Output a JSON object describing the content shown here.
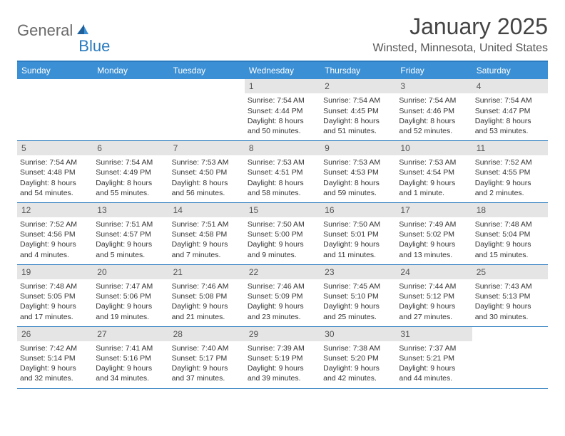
{
  "logo": {
    "text1": "General",
    "text2": "Blue"
  },
  "title": "January 2025",
  "location": "Winsted, Minnesota, United States",
  "colors": {
    "header_bg": "#3b8fd4",
    "header_text": "#ffffff",
    "border": "#2a7bbf",
    "daynum_bg": "#e5e5e5",
    "body_text": "#333333",
    "page_bg": "#ffffff",
    "logo_gray": "#6a6a6a",
    "logo_blue": "#2a7bbf"
  },
  "typography": {
    "title_fontsize": 32,
    "location_fontsize": 16,
    "weekday_fontsize": 12,
    "daynum_fontsize": 12,
    "body_fontsize": 10.5,
    "logo_fontsize": 22
  },
  "layout": {
    "columns": 7,
    "rows": 5,
    "cell_min_height": 82
  },
  "weekdays": [
    "Sunday",
    "Monday",
    "Tuesday",
    "Wednesday",
    "Thursday",
    "Friday",
    "Saturday"
  ],
  "weeks": [
    [
      {
        "day": "",
        "sunrise": "",
        "sunset": "",
        "daylight1": "",
        "daylight2": ""
      },
      {
        "day": "",
        "sunrise": "",
        "sunset": "",
        "daylight1": "",
        "daylight2": ""
      },
      {
        "day": "",
        "sunrise": "",
        "sunset": "",
        "daylight1": "",
        "daylight2": ""
      },
      {
        "day": "1",
        "sunrise": "Sunrise: 7:54 AM",
        "sunset": "Sunset: 4:44 PM",
        "daylight1": "Daylight: 8 hours",
        "daylight2": "and 50 minutes."
      },
      {
        "day": "2",
        "sunrise": "Sunrise: 7:54 AM",
        "sunset": "Sunset: 4:45 PM",
        "daylight1": "Daylight: 8 hours",
        "daylight2": "and 51 minutes."
      },
      {
        "day": "3",
        "sunrise": "Sunrise: 7:54 AM",
        "sunset": "Sunset: 4:46 PM",
        "daylight1": "Daylight: 8 hours",
        "daylight2": "and 52 minutes."
      },
      {
        "day": "4",
        "sunrise": "Sunrise: 7:54 AM",
        "sunset": "Sunset: 4:47 PM",
        "daylight1": "Daylight: 8 hours",
        "daylight2": "and 53 minutes."
      }
    ],
    [
      {
        "day": "5",
        "sunrise": "Sunrise: 7:54 AM",
        "sunset": "Sunset: 4:48 PM",
        "daylight1": "Daylight: 8 hours",
        "daylight2": "and 54 minutes."
      },
      {
        "day": "6",
        "sunrise": "Sunrise: 7:54 AM",
        "sunset": "Sunset: 4:49 PM",
        "daylight1": "Daylight: 8 hours",
        "daylight2": "and 55 minutes."
      },
      {
        "day": "7",
        "sunrise": "Sunrise: 7:53 AM",
        "sunset": "Sunset: 4:50 PM",
        "daylight1": "Daylight: 8 hours",
        "daylight2": "and 56 minutes."
      },
      {
        "day": "8",
        "sunrise": "Sunrise: 7:53 AM",
        "sunset": "Sunset: 4:51 PM",
        "daylight1": "Daylight: 8 hours",
        "daylight2": "and 58 minutes."
      },
      {
        "day": "9",
        "sunrise": "Sunrise: 7:53 AM",
        "sunset": "Sunset: 4:53 PM",
        "daylight1": "Daylight: 8 hours",
        "daylight2": "and 59 minutes."
      },
      {
        "day": "10",
        "sunrise": "Sunrise: 7:53 AM",
        "sunset": "Sunset: 4:54 PM",
        "daylight1": "Daylight: 9 hours",
        "daylight2": "and 1 minute."
      },
      {
        "day": "11",
        "sunrise": "Sunrise: 7:52 AM",
        "sunset": "Sunset: 4:55 PM",
        "daylight1": "Daylight: 9 hours",
        "daylight2": "and 2 minutes."
      }
    ],
    [
      {
        "day": "12",
        "sunrise": "Sunrise: 7:52 AM",
        "sunset": "Sunset: 4:56 PM",
        "daylight1": "Daylight: 9 hours",
        "daylight2": "and 4 minutes."
      },
      {
        "day": "13",
        "sunrise": "Sunrise: 7:51 AM",
        "sunset": "Sunset: 4:57 PM",
        "daylight1": "Daylight: 9 hours",
        "daylight2": "and 5 minutes."
      },
      {
        "day": "14",
        "sunrise": "Sunrise: 7:51 AM",
        "sunset": "Sunset: 4:58 PM",
        "daylight1": "Daylight: 9 hours",
        "daylight2": "and 7 minutes."
      },
      {
        "day": "15",
        "sunrise": "Sunrise: 7:50 AM",
        "sunset": "Sunset: 5:00 PM",
        "daylight1": "Daylight: 9 hours",
        "daylight2": "and 9 minutes."
      },
      {
        "day": "16",
        "sunrise": "Sunrise: 7:50 AM",
        "sunset": "Sunset: 5:01 PM",
        "daylight1": "Daylight: 9 hours",
        "daylight2": "and 11 minutes."
      },
      {
        "day": "17",
        "sunrise": "Sunrise: 7:49 AM",
        "sunset": "Sunset: 5:02 PM",
        "daylight1": "Daylight: 9 hours",
        "daylight2": "and 13 minutes."
      },
      {
        "day": "18",
        "sunrise": "Sunrise: 7:48 AM",
        "sunset": "Sunset: 5:04 PM",
        "daylight1": "Daylight: 9 hours",
        "daylight2": "and 15 minutes."
      }
    ],
    [
      {
        "day": "19",
        "sunrise": "Sunrise: 7:48 AM",
        "sunset": "Sunset: 5:05 PM",
        "daylight1": "Daylight: 9 hours",
        "daylight2": "and 17 minutes."
      },
      {
        "day": "20",
        "sunrise": "Sunrise: 7:47 AM",
        "sunset": "Sunset: 5:06 PM",
        "daylight1": "Daylight: 9 hours",
        "daylight2": "and 19 minutes."
      },
      {
        "day": "21",
        "sunrise": "Sunrise: 7:46 AM",
        "sunset": "Sunset: 5:08 PM",
        "daylight1": "Daylight: 9 hours",
        "daylight2": "and 21 minutes."
      },
      {
        "day": "22",
        "sunrise": "Sunrise: 7:46 AM",
        "sunset": "Sunset: 5:09 PM",
        "daylight1": "Daylight: 9 hours",
        "daylight2": "and 23 minutes."
      },
      {
        "day": "23",
        "sunrise": "Sunrise: 7:45 AM",
        "sunset": "Sunset: 5:10 PM",
        "daylight1": "Daylight: 9 hours",
        "daylight2": "and 25 minutes."
      },
      {
        "day": "24",
        "sunrise": "Sunrise: 7:44 AM",
        "sunset": "Sunset: 5:12 PM",
        "daylight1": "Daylight: 9 hours",
        "daylight2": "and 27 minutes."
      },
      {
        "day": "25",
        "sunrise": "Sunrise: 7:43 AM",
        "sunset": "Sunset: 5:13 PM",
        "daylight1": "Daylight: 9 hours",
        "daylight2": "and 30 minutes."
      }
    ],
    [
      {
        "day": "26",
        "sunrise": "Sunrise: 7:42 AM",
        "sunset": "Sunset: 5:14 PM",
        "daylight1": "Daylight: 9 hours",
        "daylight2": "and 32 minutes."
      },
      {
        "day": "27",
        "sunrise": "Sunrise: 7:41 AM",
        "sunset": "Sunset: 5:16 PM",
        "daylight1": "Daylight: 9 hours",
        "daylight2": "and 34 minutes."
      },
      {
        "day": "28",
        "sunrise": "Sunrise: 7:40 AM",
        "sunset": "Sunset: 5:17 PM",
        "daylight1": "Daylight: 9 hours",
        "daylight2": "and 37 minutes."
      },
      {
        "day": "29",
        "sunrise": "Sunrise: 7:39 AM",
        "sunset": "Sunset: 5:19 PM",
        "daylight1": "Daylight: 9 hours",
        "daylight2": "and 39 minutes."
      },
      {
        "day": "30",
        "sunrise": "Sunrise: 7:38 AM",
        "sunset": "Sunset: 5:20 PM",
        "daylight1": "Daylight: 9 hours",
        "daylight2": "and 42 minutes."
      },
      {
        "day": "31",
        "sunrise": "Sunrise: 7:37 AM",
        "sunset": "Sunset: 5:21 PM",
        "daylight1": "Daylight: 9 hours",
        "daylight2": "and 44 minutes."
      },
      {
        "day": "",
        "sunrise": "",
        "sunset": "",
        "daylight1": "",
        "daylight2": ""
      }
    ]
  ]
}
